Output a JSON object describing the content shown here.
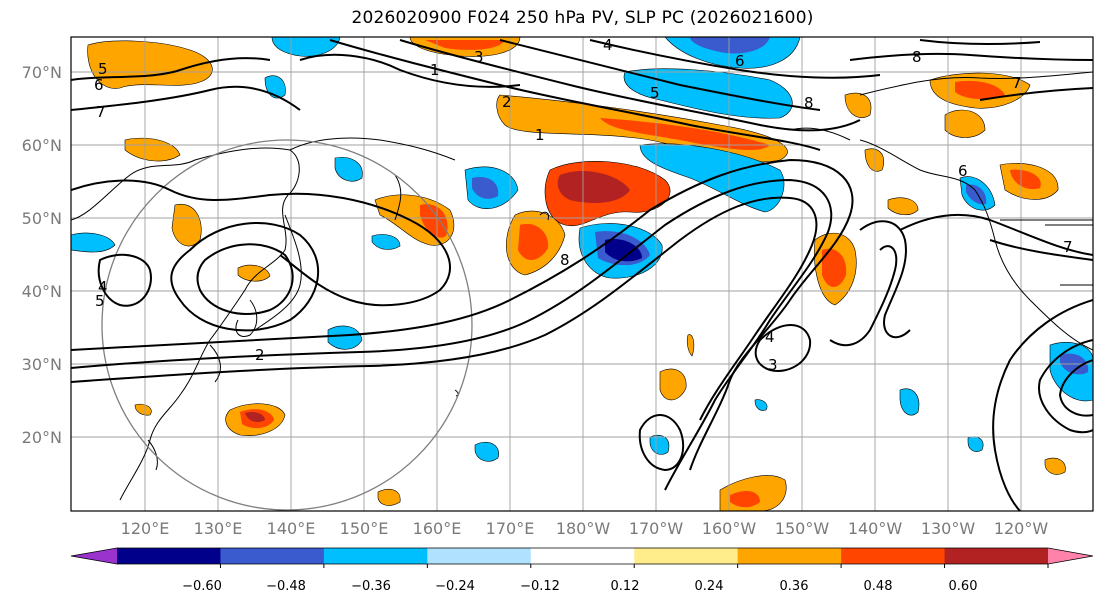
{
  "title": "2026020900 F024 250 hPa PV, SLP PC (2026021600)",
  "lat_labels": [
    "70°N",
    "60°N",
    "50°N",
    "40°N",
    "30°N",
    "20°N"
  ],
  "lon_labels": [
    "120°E",
    "130°E",
    "140°E",
    "150°E",
    "160°E",
    "170°E",
    "180°W",
    "170°W",
    "160°W",
    "150°W",
    "140°W",
    "130°W",
    "120°W"
  ],
  "colorbar": {
    "ticks": [
      "−0.60",
      "−0.48",
      "−0.36",
      "−0.24",
      "−0.12",
      "0.12",
      "0.24",
      "0.36",
      "0.48",
      "0.60"
    ],
    "colors": [
      "#9a32cd",
      "#00008b",
      "#3a5bcd",
      "#00bfff",
      "#b0e2ff",
      "#ffffff",
      "#ffec8b",
      "#ffa500",
      "#ff4500",
      "#b22222",
      "#ff82ab"
    ]
  },
  "contour_labels": [
    "4",
    "5",
    "6",
    "7",
    "8",
    "1",
    "2",
    "3",
    "4",
    "5",
    "6",
    "7",
    "8",
    "1",
    "2",
    "3",
    "4",
    "5",
    "6",
    "7",
    "8"
  ]
}
